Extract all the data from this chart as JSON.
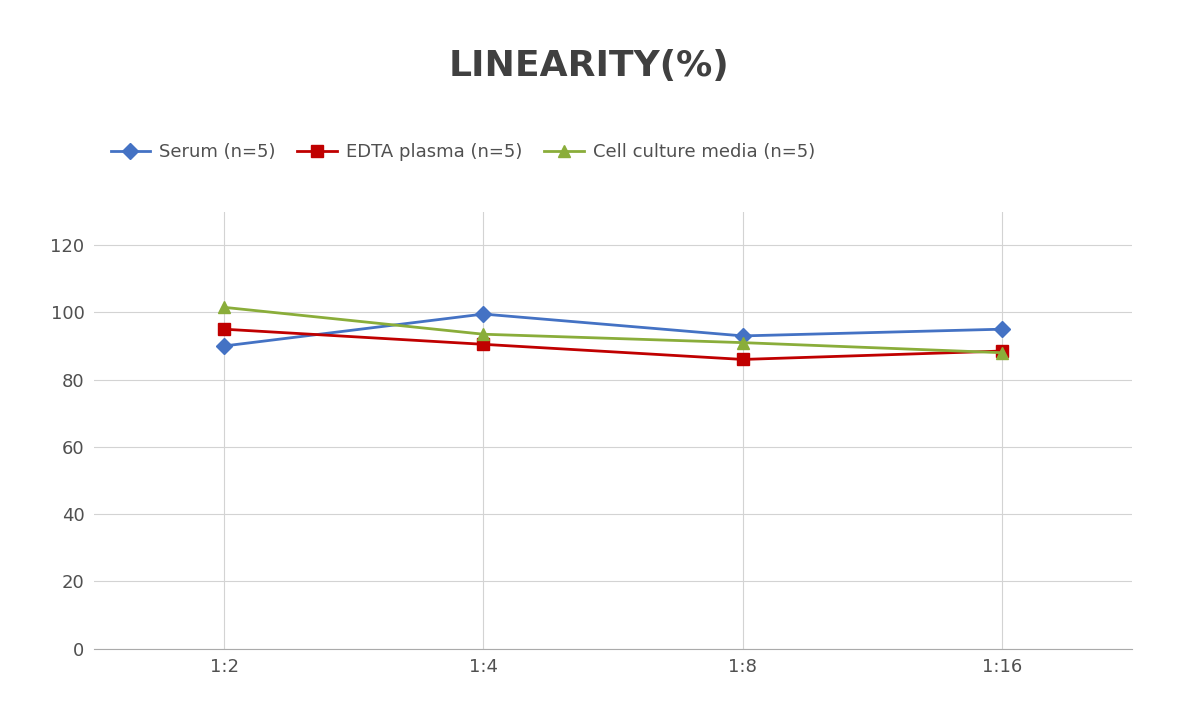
{
  "title": "LINEARITY(%)",
  "x_labels": [
    "1:2",
    "1:4",
    "1:8",
    "1:16"
  ],
  "x_positions": [
    0,
    1,
    2,
    3
  ],
  "series": [
    {
      "label": "Serum (n=5)",
      "values": [
        90,
        99.5,
        93,
        95
      ],
      "color": "#4472C4",
      "marker": "D",
      "markersize": 8,
      "linewidth": 2
    },
    {
      "label": "EDTA plasma (n=5)",
      "values": [
        95,
        90.5,
        86,
        88.5
      ],
      "color": "#C00000",
      "marker": "s",
      "markersize": 8,
      "linewidth": 2
    },
    {
      "label": "Cell culture media (n=5)",
      "values": [
        101.5,
        93.5,
        91,
        88
      ],
      "color": "#8AAD3A",
      "marker": "^",
      "markersize": 8,
      "linewidth": 2
    }
  ],
  "ylim": [
    0,
    130
  ],
  "yticks": [
    0,
    20,
    40,
    60,
    80,
    100,
    120
  ],
  "background_color": "#FFFFFF",
  "grid_color": "#D3D3D3",
  "title_fontsize": 26,
  "legend_fontsize": 13,
  "tick_fontsize": 13
}
